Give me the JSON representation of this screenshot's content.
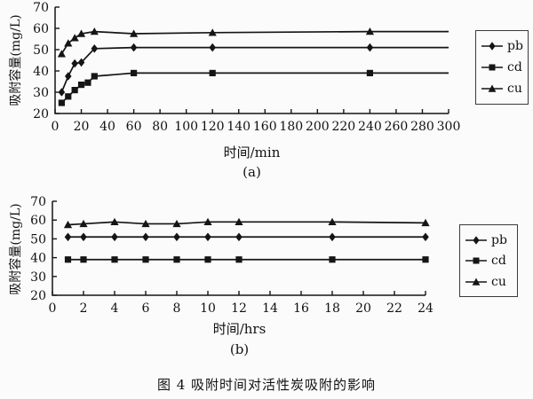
{
  "caption": "图 4  吸附时间对活性炭吸附的影响",
  "colors": {
    "ink": "#151515",
    "background": "#fbfbfb"
  },
  "chart_data": [
    {
      "id": "a",
      "type": "line",
      "title": "",
      "xlabel": "时间/min",
      "ylabel": "吸附容量(mg/L)",
      "sublabel": "(a)",
      "xlim": [
        0,
        300
      ],
      "xticks": [
        0,
        20,
        40,
        60,
        80,
        100,
        120,
        140,
        160,
        180,
        200,
        220,
        240,
        260,
        280,
        300
      ],
      "ylim": [
        20,
        70
      ],
      "yticks": [
        20,
        30,
        40,
        50,
        60,
        70
      ],
      "grid": false,
      "legend_position": "right",
      "legend": [
        "pb",
        "cd",
        "cu"
      ],
      "series": [
        {
          "name": "pb",
          "marker": "diamond",
          "x": [
            5,
            10,
            15,
            20,
            30,
            60,
            120,
            240
          ],
          "values": [
            30,
            37.5,
            43.5,
            44,
            50.5,
            51,
            51,
            51
          ],
          "tail_x": 300,
          "tail_value": 51
        },
        {
          "name": "cd",
          "marker": "square",
          "x": [
            5,
            10,
            15,
            20,
            25,
            30,
            60,
            120,
            240
          ],
          "values": [
            25,
            28,
            31,
            33.5,
            34.5,
            37.5,
            39,
            39,
            39
          ],
          "tail_x": 300,
          "tail_value": 39
        },
        {
          "name": "cu",
          "marker": "triangle",
          "x": [
            5,
            10,
            15,
            20,
            30,
            60,
            120,
            240
          ],
          "values": [
            48,
            53,
            55.5,
            57.5,
            58.5,
            57.5,
            58,
            58.5
          ],
          "tail_x": 300,
          "tail_value": 58.5
        }
      ]
    },
    {
      "id": "b",
      "type": "line",
      "title": "",
      "xlabel": "时间/hrs",
      "ylabel": "吸附容量(mg/L)",
      "sublabel": "(b)",
      "xlim": [
        0,
        24
      ],
      "xticks": [
        0,
        2,
        4,
        6,
        8,
        10,
        12,
        14,
        16,
        18,
        20,
        22,
        24
      ],
      "ylim": [
        20,
        70
      ],
      "yticks": [
        20,
        30,
        40,
        50,
        60,
        70
      ],
      "grid": false,
      "legend_position": "right",
      "legend": [
        "pb",
        "cd",
        "cu"
      ],
      "series": [
        {
          "name": "pb",
          "marker": "diamond",
          "x": [
            1,
            2,
            4,
            6,
            8,
            10,
            12,
            18,
            24
          ],
          "values": [
            51,
            51,
            51,
            51,
            51,
            51,
            51,
            51,
            51
          ]
        },
        {
          "name": "cd",
          "marker": "square",
          "x": [
            1,
            2,
            4,
            6,
            8,
            10,
            12,
            18,
            24
          ],
          "values": [
            39,
            39,
            39,
            39,
            39,
            39,
            39,
            39,
            39
          ]
        },
        {
          "name": "cu",
          "marker": "triangle",
          "x": [
            1,
            2,
            4,
            6,
            8,
            10,
            12,
            18,
            24
          ],
          "values": [
            57.5,
            58,
            59,
            58,
            58,
            59,
            59,
            59,
            58.5
          ]
        }
      ]
    }
  ]
}
